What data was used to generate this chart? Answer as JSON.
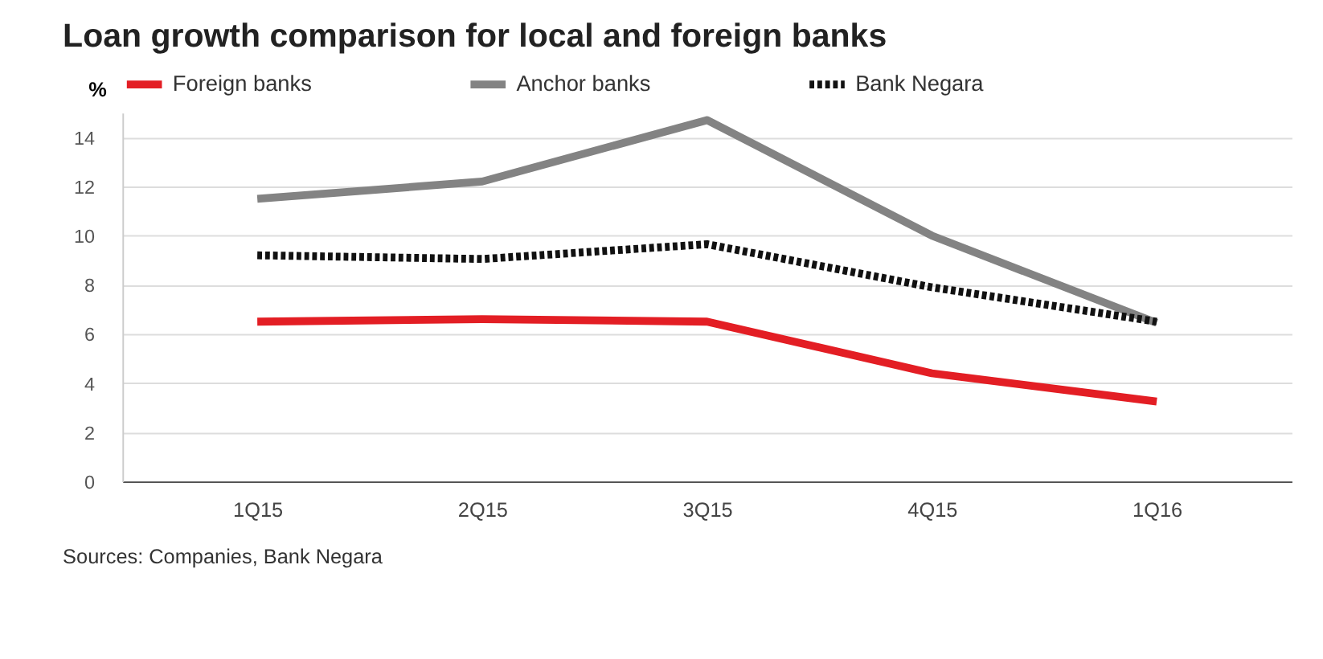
{
  "chart_data": {
    "type": "line",
    "title": "Loan growth comparison for local and foreign banks",
    "ylabel": "%",
    "categories": [
      "1Q15",
      "2Q15",
      "3Q15",
      "4Q15",
      "1Q16"
    ],
    "series": [
      {
        "name": "Foreign banks",
        "color": "#e31e24",
        "line_style": "solid",
        "values": [
          6.5,
          6.6,
          6.5,
          4.4,
          3.25
        ]
      },
      {
        "name": "Anchor banks",
        "color": "#838383",
        "line_style": "solid",
        "values": [
          11.5,
          12.2,
          14.7,
          10.0,
          6.45
        ]
      },
      {
        "name": "Bank Negara",
        "color": "#111111",
        "line_style": "dotted",
        "values": [
          9.2,
          9.05,
          9.65,
          7.9,
          6.5
        ]
      }
    ],
    "ylim": [
      0,
      15
    ],
    "yticks": [
      0,
      2,
      4,
      6,
      8,
      10,
      12,
      14
    ],
    "grid": "y",
    "legend": "top",
    "annotations": [
      "Sources: Companies, Bank Negara"
    ]
  }
}
